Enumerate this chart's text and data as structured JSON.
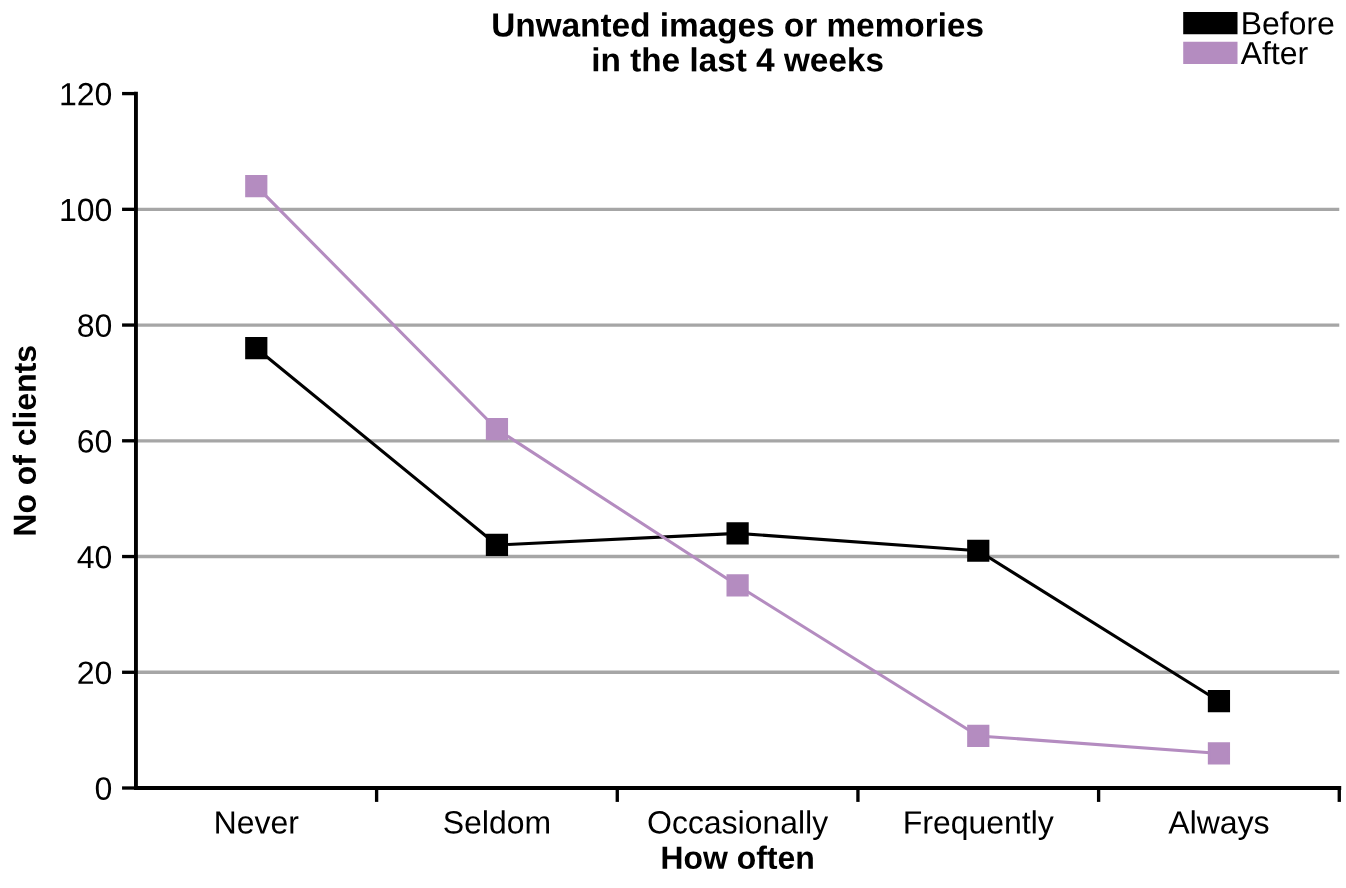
{
  "chart_data": {
    "type": "line",
    "title": "Unwanted images or memories\nin the last 4 weeks",
    "xlabel": "How often",
    "ylabel": "No of clients",
    "categories": [
      "Never",
      "Seldom",
      "Occasionally",
      "Frequently",
      "Always"
    ],
    "series": [
      {
        "name": "Before",
        "color": "#000000",
        "values": [
          76,
          42,
          44,
          41,
          15
        ]
      },
      {
        "name": "After",
        "color": "#b48cc0",
        "values": [
          104,
          62,
          35,
          9,
          6
        ]
      }
    ],
    "ylim": [
      0,
      120
    ],
    "yticks": [
      0,
      20,
      40,
      60,
      80,
      100,
      120
    ],
    "grid": "y",
    "legend": "top right",
    "marker": "square",
    "line_style": "solid"
  }
}
